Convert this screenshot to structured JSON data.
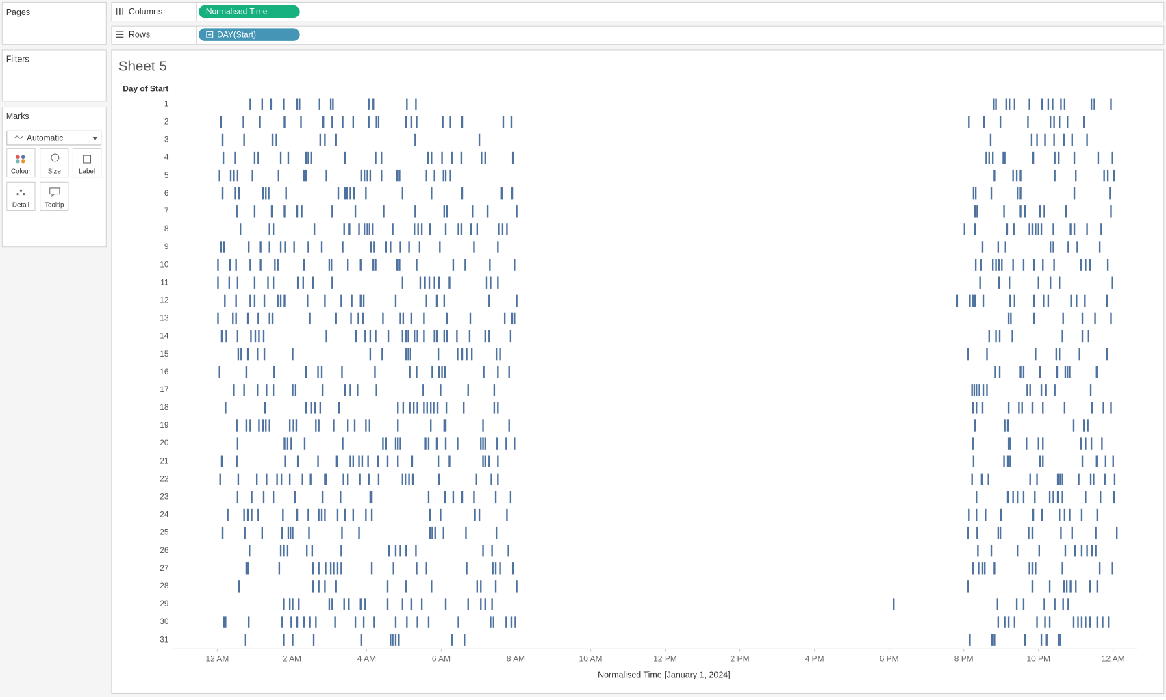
{
  "panels": {
    "pages": "Pages",
    "filters": "Filters",
    "marks": "Marks",
    "mark_type": "Automatic",
    "cards": [
      "Colour",
      "Size",
      "Label",
      "Detail",
      "Tooltip"
    ]
  },
  "shelves": {
    "columns_label": "Columns",
    "columns_pill": "Normalised Time",
    "rows_label": "Rows",
    "rows_pill": "DAY(Start)"
  },
  "sheet_title": "Sheet 5",
  "chart_data": {
    "type": "strip",
    "y_header": "Day of Start",
    "x_label": "Normalised Time [January 1, 2024]",
    "color": "#4e72a0",
    "xlim": [
      -1.18,
      24.66
    ],
    "xticks": [
      {
        "value": 0,
        "label": "12 AM"
      },
      {
        "value": 2,
        "label": "2 AM"
      },
      {
        "value": 4,
        "label": "4 AM"
      },
      {
        "value": 6,
        "label": "6 AM"
      },
      {
        "value": 8,
        "label": "8 AM"
      },
      {
        "value": 10,
        "label": "10 AM"
      },
      {
        "value": 12,
        "label": "12 PM"
      },
      {
        "value": 14,
        "label": "2 PM"
      },
      {
        "value": 16,
        "label": "4 PM"
      },
      {
        "value": 18,
        "label": "6 PM"
      },
      {
        "value": 20,
        "label": "8 PM"
      },
      {
        "value": 22,
        "label": "10 PM"
      },
      {
        "value": 24,
        "label": "12 AM"
      }
    ],
    "categories": [
      "1",
      "2",
      "3",
      "4",
      "5",
      "6",
      "7",
      "8",
      "9",
      "10",
      "11",
      "12",
      "13",
      "14",
      "15",
      "16",
      "17",
      "18",
      "19",
      "20",
      "21",
      "22",
      "23",
      "24",
      "25",
      "26",
      "27",
      "28",
      "29",
      "30",
      "31"
    ],
    "values": [
      [
        0.88,
        1.2,
        1.44,
        1.78,
        2.14,
        2.2,
        2.74,
        3.04,
        3.1,
        4.06,
        4.18,
        5.08,
        5.32,
        20.8,
        20.86,
        21.14,
        21.22,
        21.36,
        21.76,
        22.1,
        22.26,
        22.38,
        22.6,
        22.7,
        23.42,
        23.5,
        23.94
      ],
      [
        0.1,
        0.7,
        1.14,
        1.8,
        2.24,
        2.84,
        3.08,
        3.36,
        3.64,
        4.06,
        4.26,
        4.32,
        5.06,
        5.2,
        5.34,
        6.04,
        6.24,
        6.56,
        7.66,
        7.88,
        20.14,
        20.54,
        20.98,
        21.72,
        22.32,
        22.42,
        22.56,
        22.78,
        23.22
      ],
      [
        0.14,
        0.72,
        1.48,
        1.58,
        2.76,
        2.88,
        3.18,
        5.3,
        7.02,
        20.72,
        21.82,
        21.96,
        22.18,
        22.42,
        22.68,
        22.9,
        23.3
      ],
      [
        0.16,
        0.48,
        1.0,
        1.1,
        1.7,
        1.9,
        2.38,
        2.44,
        2.52,
        3.42,
        4.24,
        4.4,
        5.64,
        5.74,
        6.02,
        6.28,
        6.54,
        7.08,
        7.18,
        7.92,
        20.6,
        20.68,
        20.78,
        21.06,
        21.1,
        21.86,
        22.44,
        22.54,
        22.96,
        23.6,
        23.98
      ],
      [
        0.06,
        0.36,
        0.44,
        0.54,
        0.94,
        1.64,
        2.32,
        2.38,
        2.92,
        3.86,
        3.94,
        4.02,
        4.1,
        4.4,
        4.82,
        4.88,
        5.6,
        5.82,
        6.06,
        6.12,
        6.24,
        20.82,
        21.32,
        21.42,
        21.52,
        22.44,
        23.0,
        23.76,
        23.86,
        24.02
      ],
      [
        0.14,
        0.48,
        0.58,
        1.22,
        1.3,
        1.38,
        1.84,
        3.24,
        3.42,
        3.48,
        3.56,
        3.66,
        3.98,
        4.96,
        5.74,
        6.56,
        7.62,
        7.9,
        20.26,
        20.32,
        20.74,
        21.44,
        21.52,
        22.96,
        23.92
      ],
      [
        0.52,
        1.0,
        1.46,
        1.8,
        2.14,
        2.26,
        3.08,
        3.7,
        4.46,
        5.3,
        6.08,
        6.16,
        6.84,
        7.24,
        8.02,
        20.3,
        20.36,
        21.08,
        21.52,
        21.64,
        22.04,
        22.16,
        22.74,
        23.94
      ],
      [
        0.62,
        1.4,
        1.5,
        2.6,
        3.4,
        3.54,
        3.8,
        3.94,
        4.02,
        4.08,
        4.16,
        4.7,
        5.28,
        5.38,
        5.48,
        5.7,
        6.12,
        6.46,
        6.54,
        6.8,
        6.96,
        7.54,
        7.64,
        7.76,
        20.02,
        20.3,
        21.16,
        21.34,
        21.76,
        21.84,
        21.92,
        22.0,
        22.08,
        22.4,
        22.86,
        22.96,
        23.3,
        23.68
      ],
      [
        0.1,
        0.18,
        0.84,
        1.16,
        1.4,
        1.7,
        1.82,
        2.06,
        2.44,
        2.8,
        3.36,
        4.12,
        4.2,
        4.52,
        4.64,
        4.9,
        5.14,
        5.42,
        5.96,
        6.88,
        7.52,
        20.5,
        20.92,
        21.12,
        22.32,
        22.4,
        22.8,
        23.04,
        23.64
      ],
      [
        0.02,
        0.34,
        0.5,
        0.88,
        1.16,
        1.54,
        1.62,
        2.32,
        3.0,
        3.06,
        3.5,
        3.84,
        4.18,
        4.24,
        4.82,
        4.88,
        5.34,
        6.32,
        6.64,
        7.3,
        7.96,
        20.32,
        20.46,
        20.78,
        20.86,
        20.94,
        21.02,
        21.32,
        21.6,
        21.88,
        22.12,
        22.42,
        23.14,
        23.26,
        23.38,
        23.86
      ],
      [
        0.02,
        0.32,
        0.54,
        1.0,
        1.36,
        1.5,
        2.16,
        2.3,
        2.56,
        3.08,
        4.96,
        5.44,
        5.56,
        5.68,
        5.82,
        5.94,
        6.22,
        7.22,
        7.32,
        7.52,
        20.44,
        20.94,
        21.22,
        22.0,
        22.32,
        22.56,
        23.98
      ],
      [
        0.2,
        0.5,
        0.88,
        1.0,
        1.26,
        1.62,
        1.7,
        1.8,
        2.42,
        2.88,
        3.32,
        3.6,
        3.84,
        3.92,
        4.78,
        5.6,
        5.88,
        6.08,
        7.28,
        8.02,
        19.82,
        20.16,
        20.24,
        20.3,
        20.52,
        21.24,
        21.36,
        21.88,
        22.14,
        22.26,
        22.88,
        23.02,
        23.24,
        23.84
      ],
      [
        0.02,
        0.42,
        0.5,
        0.82,
        1.1,
        1.4,
        1.48,
        2.48,
        3.18,
        3.58,
        3.78,
        3.9,
        4.44,
        4.9,
        4.98,
        5.2,
        5.54,
        6.16,
        6.78,
        7.7,
        7.9,
        7.96,
        21.2,
        21.26,
        21.88,
        22.66,
        23.18,
        23.52,
        23.94
      ],
      [
        0.12,
        0.24,
        0.54,
        0.9,
        1.02,
        1.12,
        1.24,
        2.92,
        3.72,
        3.96,
        4.1,
        4.24,
        4.58,
        4.96,
        5.06,
        5.12,
        5.28,
        5.36,
        5.54,
        5.82,
        5.88,
        6.08,
        6.16,
        6.42,
        6.76,
        7.18,
        7.28,
        7.86,
        20.68,
        20.86,
        20.96,
        21.3,
        22.64,
        23.18,
        23.34
      ],
      [
        0.56,
        0.64,
        0.82,
        1.08,
        1.26,
        2.02,
        4.1,
        4.42,
        5.06,
        5.12,
        5.18,
        5.92,
        6.44,
        6.56,
        6.68,
        6.82,
        7.48,
        7.58,
        20.12,
        20.62,
        21.92,
        22.48,
        22.56,
        23.1,
        23.84
      ],
      [
        0.06,
        0.78,
        1.52,
        2.38,
        2.7,
        2.8,
        3.34,
        4.22,
        5.16,
        5.34,
        5.76,
        5.94,
        6.02,
        6.1,
        7.14,
        7.52,
        7.82,
        20.84,
        20.96,
        21.52,
        21.6,
        22.04,
        22.5,
        22.72,
        22.78,
        22.84,
        23.56
      ],
      [
        0.44,
        0.72,
        1.08,
        1.32,
        1.5,
        2.02,
        2.1,
        2.82,
        3.42,
        3.56,
        3.76,
        4.26,
        5.52,
        5.98,
        6.72,
        7.42,
        20.22,
        20.28,
        20.34,
        20.42,
        20.52,
        20.62,
        21.7,
        21.78,
        22.08,
        22.2,
        22.44,
        23.4
      ],
      [
        0.22,
        1.28,
        2.38,
        2.52,
        2.62,
        2.76,
        3.26,
        4.84,
        4.98,
        5.16,
        5.26,
        5.36,
        5.54,
        5.62,
        5.72,
        5.8,
        5.9,
        6.14,
        6.6,
        7.42,
        7.52,
        20.24,
        20.34,
        20.5,
        21.2,
        21.48,
        21.56,
        21.84,
        22.12,
        22.7,
        23.44,
        23.74,
        23.94
      ],
      [
        0.52,
        0.78,
        0.88,
        1.12,
        1.22,
        1.3,
        1.4,
        1.94,
        2.04,
        2.12,
        2.64,
        2.72,
        3.12,
        3.5,
        3.68,
        3.98,
        4.08,
        4.84,
        5.72,
        6.08,
        6.12,
        7.12,
        7.82,
        20.3,
        21.1,
        21.18,
        22.94,
        23.22,
        23.32
      ],
      [
        0.54,
        1.8,
        1.88,
        1.98,
        2.34,
        3.36,
        4.44,
        4.52,
        4.78,
        4.84,
        4.9,
        5.58,
        5.66,
        5.88,
        6.12,
        6.44,
        7.06,
        7.12,
        7.18,
        7.5,
        7.74,
        7.96,
        20.24,
        21.2,
        21.24,
        21.68,
        22.0,
        22.12,
        23.14,
        23.26,
        23.42,
        23.7
      ],
      [
        0.12,
        0.52,
        1.82,
        2.16,
        2.7,
        3.2,
        3.56,
        3.64,
        3.8,
        3.88,
        4.04,
        4.3,
        4.56,
        4.84,
        5.22,
        5.92,
        6.22,
        7.12,
        7.18,
        7.28,
        7.52,
        20.26,
        21.08,
        21.18,
        21.24,
        22.04,
        22.12,
        23.18,
        23.56,
        23.8,
        24.0
      ],
      [
        0.08,
        0.56,
        1.06,
        1.32,
        1.6,
        1.72,
        1.94,
        2.28,
        2.5,
        2.88,
        2.92,
        3.38,
        3.5,
        3.82,
        4.06,
        4.32,
        4.96,
        5.04,
        5.14,
        5.24,
        5.94,
        6.94,
        7.34,
        7.52,
        20.22,
        20.48,
        20.66,
        21.78,
        21.96,
        22.52,
        22.58,
        22.64,
        23.08,
        23.4,
        23.48,
        23.78,
        24.04
      ],
      [
        0.54,
        0.92,
        1.24,
        1.5,
        2.08,
        2.82,
        3.3,
        4.1,
        4.14,
        5.66,
        6.1,
        6.32,
        6.56,
        6.88,
        7.46,
        7.86,
        20.34,
        21.18,
        21.32,
        21.44,
        21.6,
        21.9,
        22.3,
        22.4,
        22.52,
        22.64,
        23.26,
        23.66,
        24.02
      ],
      [
        0.28,
        0.72,
        0.82,
        0.92,
        1.1,
        1.76,
        2.14,
        2.44,
        2.72,
        2.8,
        2.88,
        3.22,
        3.42,
        3.64,
        3.98,
        4.14,
        5.7,
        5.98,
        6.9,
        7.02,
        7.76,
        20.14,
        20.34,
        20.58,
        21.0,
        21.86,
        22.1,
        22.56,
        22.7,
        22.84,
        23.16,
        23.58
      ],
      [
        0.14,
        0.74,
        1.2,
        1.74,
        1.9,
        1.96,
        2.02,
        2.46,
        3.34,
        3.8,
        5.7,
        5.76,
        5.84,
        6.06,
        6.66,
        7.48,
        20.12,
        20.36,
        20.92,
        20.98,
        21.74,
        21.84,
        22.6,
        22.9,
        23.54,
        24.1
      ],
      [
        0.86,
        1.7,
        1.78,
        1.88,
        2.4,
        2.54,
        3.32,
        4.6,
        4.78,
        4.9,
        5.06,
        5.32,
        7.12,
        7.36,
        7.8,
        20.38,
        20.74,
        21.44,
        22.02,
        22.72,
        22.98,
        23.16,
        23.3,
        23.44,
        23.54
      ],
      [
        0.78,
        0.82,
        1.66,
        2.56,
        2.72,
        2.9,
        3.04,
        3.12,
        3.22,
        3.32,
        4.14,
        4.72,
        5.34,
        5.6,
        6.68,
        7.38,
        7.46,
        7.58,
        7.92,
        20.24,
        20.4,
        20.5,
        20.56,
        20.82,
        21.76,
        21.84,
        21.92,
        22.64,
        23.64,
        23.98
      ],
      [
        0.58,
        2.56,
        2.72,
        2.88,
        3.18,
        4.56,
        5.06,
        5.74,
        6.96,
        7.06,
        7.46,
        8.02,
        20.12,
        21.84,
        22.3,
        22.68,
        22.76,
        22.86,
        23.0,
        23.38,
        23.58
      ],
      [
        1.78,
        1.94,
        2.02,
        2.18,
        3.0,
        3.08,
        3.4,
        3.52,
        3.84,
        3.96,
        4.56,
        4.96,
        5.2,
        5.48,
        6.12,
        6.72,
        7.06,
        7.18,
        7.36,
        18.12,
        20.9,
        21.42,
        21.6,
        22.16,
        22.44,
        22.66,
        22.8
      ],
      [
        0.18,
        0.22,
        0.84,
        1.74,
        1.98,
        2.14,
        2.32,
        2.48,
        2.64,
        3.16,
        3.7,
        3.92,
        4.2,
        4.78,
        5.08,
        5.36,
        5.66,
        6.46,
        7.32,
        7.4,
        7.74,
        7.88,
        7.98,
        20.92,
        21.1,
        21.2,
        21.36,
        21.96,
        22.18,
        22.3,
        22.94,
        23.06,
        23.16,
        23.26,
        23.38,
        23.58,
        23.72,
        23.88
      ],
      [
        0.76,
        1.78,
        2.02,
        2.58,
        3.86,
        4.64,
        4.7,
        4.78,
        4.86,
        6.28,
        6.62,
        20.16,
        20.76,
        20.82,
        21.64,
        22.08,
        22.22,
        22.54,
        22.58
      ]
    ]
  }
}
